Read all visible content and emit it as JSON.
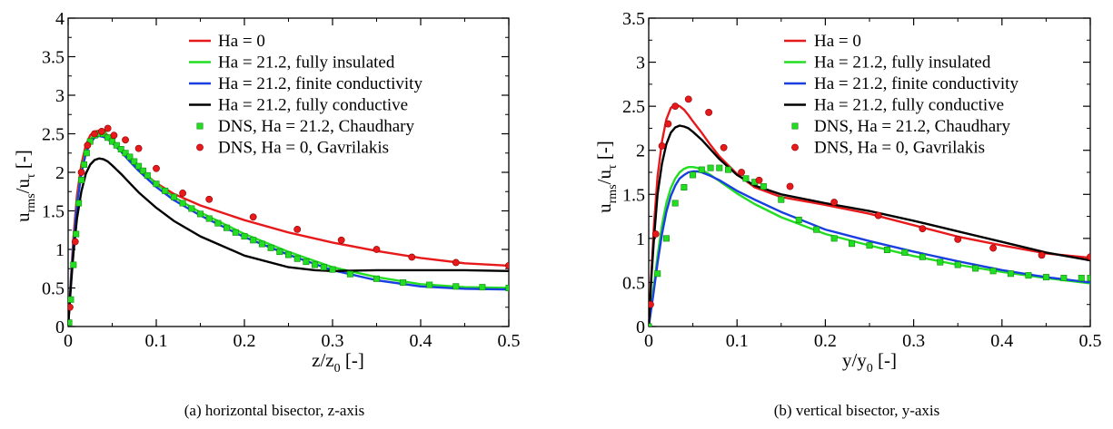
{
  "chart_data": [
    {
      "type": "line",
      "caption": "(a) horizontal bisector, z-axis",
      "xlabel": "z/z",
      "xlabel_sub": "0",
      "xlabel_unit": " [-]",
      "ylabel": "u",
      "ylabel_sub1": "rms",
      "ylabel_mid": "/u",
      "ylabel_sub2": "τ",
      "ylabel_unit": " [-]",
      "xlim": [
        0,
        0.5
      ],
      "ylim": [
        0,
        4
      ],
      "xticks": [
        0,
        0.1,
        0.2,
        0.3,
        0.4,
        0.5
      ],
      "xtick_labels": [
        "0",
        "0.1",
        "0.2",
        "0.3",
        "0.4",
        "0.5"
      ],
      "yticks": [
        0,
        0.5,
        1,
        1.5,
        2,
        2.5,
        3,
        3.5,
        4
      ],
      "ytick_labels": [
        "0",
        "0.5",
        "1",
        "1.5",
        "2",
        "2.5",
        "3",
        "3.5",
        "4"
      ],
      "grid": false,
      "legend_placement": "top-right",
      "series": [
        {
          "name": "Ha = 0",
          "kind": "line",
          "color": "#e8191a",
          "x": [
            0,
            0.003,
            0.006,
            0.01,
            0.015,
            0.02,
            0.025,
            0.03,
            0.035,
            0.04,
            0.045,
            0.05,
            0.06,
            0.07,
            0.08,
            0.1,
            0.12,
            0.15,
            0.2,
            0.25,
            0.3,
            0.35,
            0.4,
            0.45,
            0.5
          ],
          "y": [
            0,
            0.6,
            1.15,
            1.7,
            2.1,
            2.35,
            2.48,
            2.53,
            2.54,
            2.52,
            2.48,
            2.42,
            2.3,
            2.17,
            2.05,
            1.86,
            1.72,
            1.57,
            1.38,
            1.22,
            1.09,
            0.98,
            0.89,
            0.82,
            0.79
          ]
        },
        {
          "name": "Ha = 21.2, fully insulated",
          "kind": "line",
          "color": "#22dd22",
          "x": [
            0,
            0.003,
            0.006,
            0.01,
            0.015,
            0.02,
            0.025,
            0.03,
            0.035,
            0.04,
            0.045,
            0.05,
            0.06,
            0.07,
            0.08,
            0.1,
            0.12,
            0.15,
            0.2,
            0.25,
            0.3,
            0.35,
            0.4,
            0.45,
            0.5
          ],
          "y": [
            0,
            0.55,
            1.05,
            1.6,
            2.0,
            2.27,
            2.42,
            2.49,
            2.51,
            2.5,
            2.47,
            2.42,
            2.31,
            2.18,
            2.06,
            1.85,
            1.68,
            1.48,
            1.2,
            0.97,
            0.77,
            0.64,
            0.55,
            0.51,
            0.5
          ]
        },
        {
          "name": "Ha = 21.2, finite conductivity",
          "kind": "line",
          "color": "#1a3fe0",
          "x": [
            0,
            0.003,
            0.006,
            0.01,
            0.015,
            0.02,
            0.025,
            0.03,
            0.035,
            0.04,
            0.045,
            0.05,
            0.06,
            0.07,
            0.08,
            0.1,
            0.12,
            0.15,
            0.2,
            0.25,
            0.3,
            0.35,
            0.4,
            0.45,
            0.5
          ],
          "y": [
            0,
            0.55,
            1.05,
            1.58,
            1.98,
            2.24,
            2.38,
            2.45,
            2.47,
            2.46,
            2.43,
            2.38,
            2.27,
            2.14,
            2.02,
            1.81,
            1.64,
            1.44,
            1.16,
            0.93,
            0.73,
            0.6,
            0.52,
            0.49,
            0.48
          ]
        },
        {
          "name": "Ha = 21.2, fully conductive",
          "kind": "line",
          "color": "#000000",
          "x": [
            0,
            0.003,
            0.006,
            0.01,
            0.015,
            0.02,
            0.025,
            0.03,
            0.035,
            0.04,
            0.045,
            0.05,
            0.06,
            0.07,
            0.08,
            0.1,
            0.12,
            0.15,
            0.2,
            0.25,
            0.28,
            0.3,
            0.35,
            0.4,
            0.45,
            0.5
          ],
          "y": [
            0,
            0.5,
            0.95,
            1.4,
            1.75,
            1.98,
            2.1,
            2.16,
            2.18,
            2.17,
            2.14,
            2.09,
            1.98,
            1.86,
            1.74,
            1.54,
            1.37,
            1.17,
            0.92,
            0.77,
            0.73,
            0.72,
            0.73,
            0.73,
            0.73,
            0.72
          ]
        },
        {
          "name": "DNS, Ha = 21.2, Chaudhary",
          "kind": "square",
          "color": "#22dd22",
          "x": [
            0.001,
            0.003,
            0.006,
            0.009,
            0.012,
            0.015,
            0.018,
            0.021,
            0.025,
            0.03,
            0.035,
            0.04,
            0.045,
            0.05,
            0.055,
            0.06,
            0.065,
            0.07,
            0.075,
            0.08,
            0.085,
            0.09,
            0.1,
            0.11,
            0.12,
            0.13,
            0.14,
            0.15,
            0.16,
            0.17,
            0.18,
            0.19,
            0.2,
            0.21,
            0.22,
            0.23,
            0.24,
            0.25,
            0.26,
            0.27,
            0.28,
            0.29,
            0.3,
            0.32,
            0.35,
            0.38,
            0.41,
            0.44,
            0.47,
            0.5
          ],
          "y": [
            0.05,
            0.35,
            0.8,
            1.2,
            1.6,
            1.9,
            2.1,
            2.25,
            2.4,
            2.48,
            2.5,
            2.5,
            2.45,
            2.4,
            2.35,
            2.3,
            2.25,
            2.2,
            2.14,
            2.08,
            2.02,
            1.96,
            1.85,
            1.76,
            1.68,
            1.6,
            1.53,
            1.46,
            1.4,
            1.34,
            1.28,
            1.22,
            1.17,
            1.12,
            1.07,
            1.02,
            0.97,
            0.93,
            0.88,
            0.84,
            0.8,
            0.77,
            0.74,
            0.68,
            0.62,
            0.57,
            0.54,
            0.52,
            0.51,
            0.5
          ]
        },
        {
          "name": "DNS, Ha = 0, Gavrilakis",
          "kind": "circle",
          "color": "#e8191a",
          "x": [
            0.002,
            0.008,
            0.015,
            0.022,
            0.03,
            0.038,
            0.045,
            0.052,
            0.065,
            0.08,
            0.1,
            0.13,
            0.16,
            0.21,
            0.26,
            0.31,
            0.35,
            0.39,
            0.44,
            0.5
          ],
          "y": [
            0.25,
            1.1,
            2.0,
            2.35,
            2.5,
            2.53,
            2.57,
            2.48,
            2.42,
            2.31,
            2.05,
            1.73,
            1.65,
            1.42,
            1.26,
            1.12,
            1.0,
            0.9,
            0.83,
            0.79
          ]
        }
      ]
    },
    {
      "type": "line",
      "caption": "(b) vertical bisector, y-axis",
      "xlabel": "y/y",
      "xlabel_sub": "0",
      "xlabel_unit": " [-]",
      "ylabel": "u",
      "ylabel_sub1": "rms",
      "ylabel_mid": "/u",
      "ylabel_sub2": "τ",
      "ylabel_unit": " [-]",
      "xlim": [
        0,
        0.5
      ],
      "ylim": [
        0,
        3.5
      ],
      "xticks": [
        0,
        0.1,
        0.2,
        0.3,
        0.4,
        0.5
      ],
      "xtick_labels": [
        "0",
        "0.1",
        "0.2",
        "0.3",
        "0.4",
        "0.5"
      ],
      "yticks": [
        0,
        0.5,
        1,
        1.5,
        2,
        2.5,
        3,
        3.5
      ],
      "ytick_labels": [
        "0",
        "0.5",
        "1",
        "1.5",
        "2",
        "2.5",
        "3",
        "3.5"
      ],
      "grid": false,
      "legend_placement": "top-right",
      "series": [
        {
          "name": "Ha = 0",
          "kind": "line",
          "color": "#e8191a",
          "x": [
            0,
            0.003,
            0.006,
            0.01,
            0.015,
            0.02,
            0.025,
            0.03,
            0.035,
            0.04,
            0.045,
            0.05,
            0.06,
            0.07,
            0.08,
            0.1,
            0.12,
            0.15,
            0.2,
            0.25,
            0.3,
            0.35,
            0.4,
            0.45,
            0.5
          ],
          "y": [
            0,
            0.6,
            1.15,
            1.7,
            2.1,
            2.35,
            2.48,
            2.52,
            2.5,
            2.46,
            2.4,
            2.33,
            2.2,
            2.06,
            1.93,
            1.73,
            1.58,
            1.47,
            1.38,
            1.28,
            1.15,
            1.02,
            0.92,
            0.83,
            0.78
          ]
        },
        {
          "name": "Ha = 21.2, fully insulated",
          "kind": "line",
          "color": "#22dd22",
          "x": [
            0,
            0.005,
            0.01,
            0.015,
            0.02,
            0.025,
            0.03,
            0.035,
            0.04,
            0.045,
            0.05,
            0.055,
            0.06,
            0.07,
            0.08,
            0.1,
            0.12,
            0.15,
            0.2,
            0.25,
            0.3,
            0.35,
            0.4,
            0.45,
            0.5
          ],
          "y": [
            0,
            0.4,
            0.8,
            1.15,
            1.4,
            1.57,
            1.68,
            1.75,
            1.79,
            1.81,
            1.81,
            1.8,
            1.78,
            1.72,
            1.65,
            1.51,
            1.39,
            1.24,
            1.05,
            0.92,
            0.8,
            0.7,
            0.62,
            0.55,
            0.49
          ]
        },
        {
          "name": "Ha = 21.2, finite conductivity",
          "kind": "line",
          "color": "#1a3fe0",
          "x": [
            0,
            0.005,
            0.01,
            0.015,
            0.02,
            0.025,
            0.03,
            0.035,
            0.04,
            0.045,
            0.05,
            0.055,
            0.06,
            0.07,
            0.08,
            0.1,
            0.12,
            0.15,
            0.2,
            0.25,
            0.3,
            0.35,
            0.4,
            0.45,
            0.5
          ],
          "y": [
            0,
            0.35,
            0.72,
            1.05,
            1.3,
            1.48,
            1.6,
            1.68,
            1.72,
            1.75,
            1.76,
            1.76,
            1.75,
            1.71,
            1.66,
            1.54,
            1.44,
            1.3,
            1.1,
            0.97,
            0.85,
            0.74,
            0.64,
            0.56,
            0.5
          ]
        },
        {
          "name": "Ha = 21.2, fully conductive",
          "kind": "line",
          "color": "#000000",
          "x": [
            0,
            0.003,
            0.006,
            0.01,
            0.015,
            0.02,
            0.025,
            0.03,
            0.035,
            0.04,
            0.045,
            0.05,
            0.06,
            0.07,
            0.08,
            0.1,
            0.12,
            0.15,
            0.2,
            0.25,
            0.3,
            0.35,
            0.4,
            0.45,
            0.5
          ],
          "y": [
            0,
            0.55,
            1.0,
            1.5,
            1.85,
            2.07,
            2.2,
            2.26,
            2.28,
            2.27,
            2.25,
            2.21,
            2.12,
            2.01,
            1.9,
            1.72,
            1.6,
            1.5,
            1.4,
            1.31,
            1.2,
            1.08,
            0.96,
            0.84,
            0.75
          ]
        },
        {
          "name": "DNS, Ha = 21.2, Chaudhary",
          "kind": "square",
          "color": "#22dd22",
          "x": [
            0,
            0.01,
            0.02,
            0.03,
            0.04,
            0.05,
            0.06,
            0.07,
            0.08,
            0.09,
            0.11,
            0.12,
            0.13,
            0.15,
            0.17,
            0.19,
            0.21,
            0.23,
            0.25,
            0.27,
            0.29,
            0.31,
            0.33,
            0.35,
            0.37,
            0.39,
            0.41,
            0.43,
            0.45,
            0.47,
            0.49,
            0.5
          ],
          "y": [
            0,
            0.6,
            1.0,
            1.4,
            1.58,
            1.72,
            1.78,
            1.8,
            1.8,
            1.78,
            1.68,
            1.64,
            1.59,
            1.44,
            1.21,
            1.1,
            1.0,
            0.94,
            0.92,
            0.87,
            0.84,
            0.79,
            0.73,
            0.7,
            0.66,
            0.63,
            0.6,
            0.58,
            0.56,
            0.55,
            0.55,
            0.55
          ]
        },
        {
          "name": "DNS, Ha = 0, Gavrilakis",
          "kind": "circle",
          "color": "#e8191a",
          "x": [
            0.002,
            0.008,
            0.015,
            0.022,
            0.03,
            0.045,
            0.068,
            0.085,
            0.105,
            0.125,
            0.16,
            0.21,
            0.26,
            0.31,
            0.35,
            0.39,
            0.445,
            0.5
          ],
          "y": [
            0.25,
            1.05,
            2.05,
            2.3,
            2.5,
            2.58,
            2.43,
            2.03,
            1.75,
            1.66,
            1.59,
            1.41,
            1.26,
            1.11,
            0.99,
            0.89,
            0.81,
            0.79
          ]
        }
      ]
    }
  ]
}
